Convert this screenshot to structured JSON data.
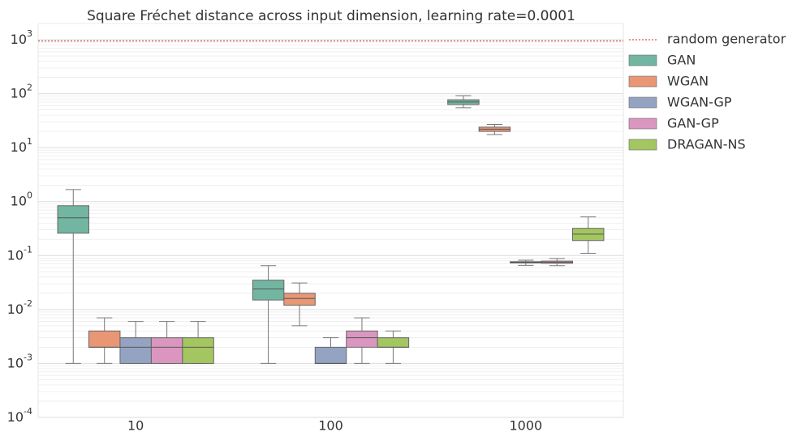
{
  "chart_data": {
    "type": "box",
    "title": "Square Fréchet distance across input dimension, learning rate=0.0001",
    "categories": [
      "10",
      "100",
      "1000"
    ],
    "log_scale": true,
    "grid": true,
    "minor_grid": true,
    "legend": "upper right outside",
    "ylim": [
      0.0001,
      2000
    ],
    "yticks": [
      {
        "value": 0.0001,
        "label": "10^-4"
      },
      {
        "value": 0.001,
        "label": "10^-3"
      },
      {
        "value": 0.01,
        "label": "10^-2"
      },
      {
        "value": 0.1,
        "label": "10^-1"
      },
      {
        "value": 1,
        "label": "10^0"
      },
      {
        "value": 10,
        "label": "10^1"
      },
      {
        "value": 100,
        "label": "10^2"
      },
      {
        "value": 1000,
        "label": "10^3"
      }
    ],
    "reference_line": {
      "name": "random generator",
      "value": 950,
      "color": "#d9534f"
    },
    "series": [
      {
        "name": "GAN",
        "color": "#72b6a1",
        "whislo": [
          0.001,
          0.001,
          55
        ],
        "q1": [
          0.26,
          0.015,
          63
        ],
        "median": [
          0.5,
          0.024,
          70
        ],
        "q3": [
          0.84,
          0.035,
          77
        ],
        "whishi": [
          1.67,
          0.065,
          92
        ]
      },
      {
        "name": "WGAN",
        "color": "#e99675",
        "whislo": [
          0.001,
          0.005,
          17.5
        ],
        "q1": [
          0.002,
          0.012,
          20
        ],
        "median": [
          0.002,
          0.016,
          22
        ],
        "q3": [
          0.004,
          0.02,
          24
        ],
        "whishi": [
          0.007,
          0.031,
          27
        ]
      },
      {
        "name": "WGAN-GP",
        "color": "#95a3c3",
        "whislo": [
          0.001,
          0.001,
          0.066
        ],
        "q1": [
          0.001,
          0.001,
          0.073
        ],
        "median": [
          0.002,
          0.001,
          0.075
        ],
        "q3": [
          0.003,
          0.002,
          0.077
        ],
        "whishi": [
          0.006,
          0.003,
          0.082
        ]
      },
      {
        "name": "GAN-GP",
        "color": "#db96c0",
        "whislo": [
          0.001,
          0.001,
          0.065
        ],
        "q1": [
          0.001,
          0.002,
          0.072
        ],
        "median": [
          0.002,
          0.003,
          0.075
        ],
        "q3": [
          0.003,
          0.004,
          0.079
        ],
        "whishi": [
          0.006,
          0.007,
          0.088
        ]
      },
      {
        "name": "DRAGAN-NS",
        "color": "#a4c661",
        "whislo": [
          0.001,
          0.001,
          0.11
        ],
        "q1": [
          0.001,
          0.002,
          0.19
        ],
        "median": [
          0.002,
          0.002,
          0.25
        ],
        "q3": [
          0.003,
          0.003,
          0.32
        ],
        "whishi": [
          0.006,
          0.004,
          0.52
        ]
      }
    ]
  }
}
